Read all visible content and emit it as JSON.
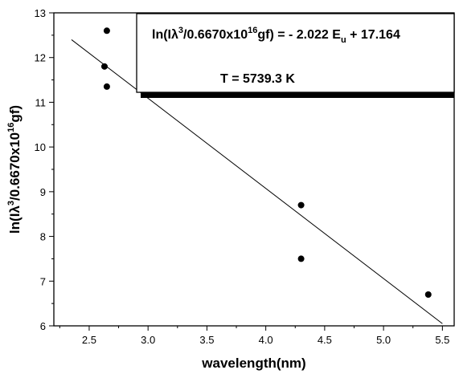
{
  "chart_data": {
    "type": "scatter",
    "xlabel": "wavelength(nm)",
    "ylabel": {
      "prefix": "ln(Iλ",
      "sup1": "3",
      "mid": "/0.6670x10",
      "sup2": "16",
      "suffix": "gf)"
    },
    "xlim": [
      2.2,
      5.6
    ],
    "ylim": [
      6,
      13
    ],
    "xticks": [
      "2.5",
      "3.0",
      "3.5",
      "4.0",
      "4.5",
      "5.0",
      "5.5"
    ],
    "yticks": [
      "6",
      "7",
      "8",
      "9",
      "10",
      "11",
      "12",
      "13"
    ],
    "points": [
      {
        "x": 2.63,
        "y": 11.8
      },
      {
        "x": 2.65,
        "y": 12.6
      },
      {
        "x": 2.65,
        "y": 11.35
      },
      {
        "x": 4.3,
        "y": 8.7
      },
      {
        "x": 4.3,
        "y": 7.5
      },
      {
        "x": 5.38,
        "y": 6.7
      }
    ],
    "fit_line": {
      "x": [
        2.35,
        5.5
      ],
      "y": [
        12.4,
        6.05
      ]
    },
    "grid": false,
    "annotation": {
      "equation": {
        "left_prefix": "ln(Iλ",
        "left_sup1": "3",
        "left_mid": "/0.6670x10",
        "left_sup2": "16",
        "left_suffix": "gf) = - 2.022 E",
        "sub": "u",
        "right": " + 17.164"
      },
      "temperature": "T = 5739.3 K"
    }
  }
}
